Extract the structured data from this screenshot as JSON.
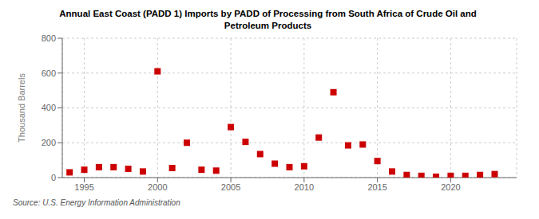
{
  "chart_data": {
    "type": "scatter",
    "title": "Annual East Coast (PADD 1) Imports by PADD of Processing from South Africa of Crude Oil and\nPetroleum Products",
    "ylabel": "Thousand Barrels",
    "source": "Source: U.S. Energy Information Administration",
    "color": "#cc0000",
    "marker": "square",
    "grid": true,
    "x": [
      1994,
      1995,
      1996,
      1997,
      1998,
      1999,
      2000,
      2001,
      2002,
      2003,
      2004,
      2005,
      2006,
      2007,
      2008,
      2009,
      2010,
      2011,
      2012,
      2013,
      2014,
      2015,
      2016,
      2017,
      2018,
      2019,
      2020,
      2021,
      2022,
      2023
    ],
    "values": [
      30,
      45,
      60,
      60,
      50,
      35,
      610,
      55,
      200,
      45,
      40,
      290,
      205,
      135,
      80,
      60,
      65,
      230,
      490,
      185,
      190,
      95,
      35,
      15,
      10,
      5,
      10,
      10,
      15,
      20
    ],
    "xlim": [
      1993.5,
      2024.5
    ],
    "xticks": [
      1995,
      2000,
      2005,
      2010,
      2015,
      2020
    ],
    "ylim": [
      0,
      800
    ],
    "yticks": [
      0,
      200,
      400,
      600,
      800
    ]
  }
}
